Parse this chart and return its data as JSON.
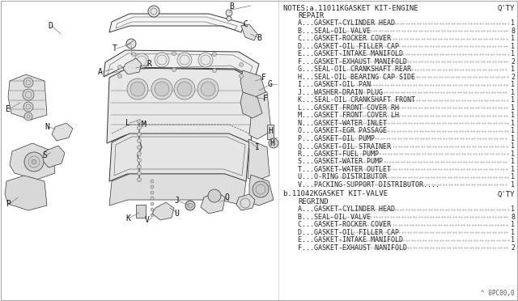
{
  "bg_color": "#ffffff",
  "notes_header_left": "NOTES;a.11011KGASKET KIT-ENGINE",
  "notes_header_right": "Q'TY",
  "notes_subheader": "REPAIR",
  "section_a_items": [
    [
      "A...GASKET-CYLINDER HEAD",
      "1"
    ],
    [
      "B...SEAL-OIL VALVE",
      "8"
    ],
    [
      "C...GASKET-ROCKER COVER",
      "1"
    ],
    [
      "D...GASKET-OIL FILLER CAP",
      "1"
    ],
    [
      "E...GASKET-INTAKE MANIFOLD",
      "1"
    ],
    [
      "F...GASKET-EXHAUST MANIFOLD",
      "2"
    ],
    [
      "G...SEAL-OIL CRANKSHAFT REAR",
      "1"
    ],
    [
      "H...SEAL-OIL BEARING CAP SIDE",
      "2"
    ],
    [
      "I...GASKET-OIL PAN",
      "1"
    ],
    [
      "J...WASHER-DRAIN PLUG",
      "1"
    ],
    [
      "K...SEAL-OIL CRANKSHAFT FRONT",
      "1"
    ],
    [
      "L...GASKET FRONT COVER RH",
      "1"
    ],
    [
      "M...GASKET FRONT COVER LH",
      "1"
    ],
    [
      "N...GASKET-WATER INLET",
      "1"
    ],
    [
      "O...GASKET-EGR PASSAGE",
      "1"
    ],
    [
      "P...GASKET-OIL PUMP",
      "1"
    ],
    [
      "Q...GASKET-OIL STRAINER",
      "1"
    ],
    [
      "R...GASKET-FUEL PUMP",
      "1"
    ],
    [
      "S...GASKET-WATER PUMP",
      "1"
    ],
    [
      "T...GASKET-WATER OUTLET",
      "1"
    ],
    [
      "U...O-RING DISTRIBUTOR",
      "1"
    ],
    [
      "V...PACKING-SUPPORT DISTRIBUTOR....",
      "1"
    ]
  ],
  "notes_header2_left": "b.11042KGASKET KIT-VALVE",
  "notes_header2_right": "Q'TY",
  "notes_subheader2": "REGRIND",
  "section_b_items": [
    [
      "A...GASKET-CYLINDER HEAD",
      "1"
    ],
    [
      "B...SEAL-OIL VALVE",
      "8"
    ],
    [
      "C...GASKET-ROCKER COVER",
      "1"
    ],
    [
      "D...GASKET-OIL FILLER CAP",
      "1"
    ],
    [
      "E...GASKET-INTAKE MANIFOLD",
      "1"
    ],
    [
      "F...GASKET-EXHAUST NANIFOLD",
      "2"
    ]
  ],
  "footer": "^ 0PC00,0",
  "text_color": "#222222",
  "dot_color": "#555555"
}
